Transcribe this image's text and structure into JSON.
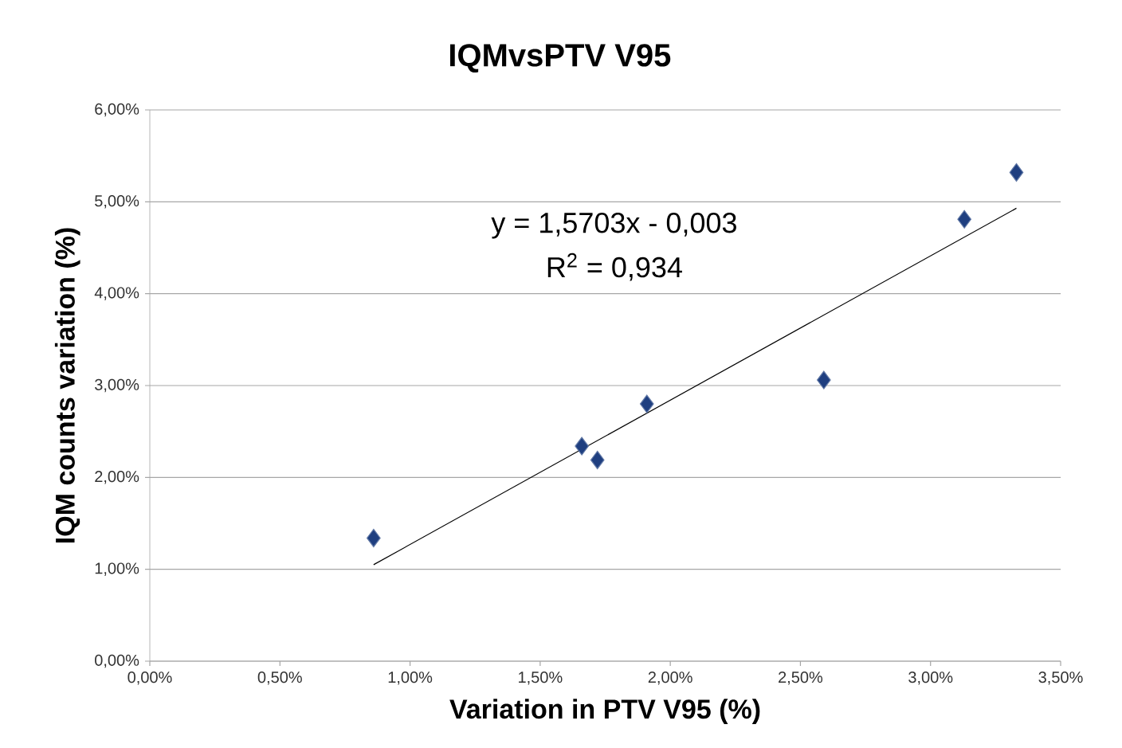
{
  "chart_data": {
    "type": "scatter",
    "title": "IQMvsPTV V95",
    "xlabel": "Variation in PTV V95 (%)",
    "ylabel": "IQM counts variation (%)",
    "series": [
      {
        "color": "#1f3f80",
        "marker": "diamond",
        "x": [
          0.86,
          1.66,
          1.72,
          1.91,
          2.59,
          3.13,
          3.33
        ],
        "values": [
          1.34,
          2.34,
          2.19,
          2.8,
          3.06,
          4.81,
          5.32
        ]
      },
      {
        "type": "line",
        "marker": "none",
        "color": "#000000",
        "x": [
          0.86,
          3.33
        ],
        "values": [
          1.05,
          4.93
        ]
      }
    ],
    "grid": "y",
    "xlim": [
      0,
      3.5
    ],
    "ylim": [
      0,
      6
    ],
    "xticks": [
      {
        "value": 0,
        "label": "0,00%"
      },
      {
        "value": 0.5,
        "label": "0,50%"
      },
      {
        "value": 1,
        "label": "1,00%"
      },
      {
        "value": 1.5,
        "label": "1,50%"
      },
      {
        "value": 2,
        "label": "2,00%"
      },
      {
        "value": 2.5,
        "label": "2,50%"
      },
      {
        "value": 3,
        "label": "3,00%"
      },
      {
        "value": 3.5,
        "label": "3,50%"
      }
    ],
    "yticks": [
      {
        "value": 0,
        "label": "0,00%"
      },
      {
        "value": 1,
        "label": "1,00%"
      },
      {
        "value": 2,
        "label": "2,00%"
      },
      {
        "value": 3,
        "label": "3,00%"
      },
      {
        "value": 4,
        "label": "4,00%"
      },
      {
        "value": 5,
        "label": "5,00%"
      },
      {
        "value": 6,
        "label": "6,00%"
      }
    ],
    "annotations": [
      "y = 1,5703x - 0,003",
      "R$^{2}$ = 0,934"
    ]
  }
}
